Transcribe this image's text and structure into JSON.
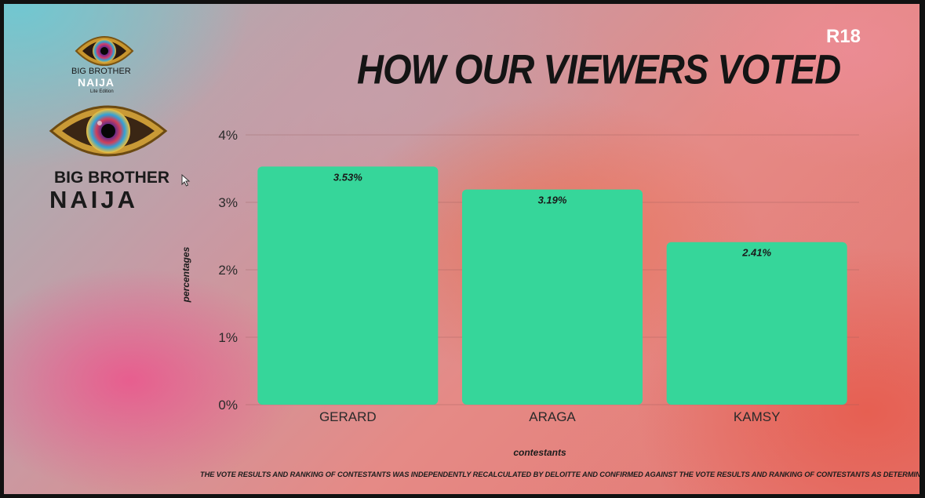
{
  "header": {
    "title": "HOW OUR VIEWERS VOTED",
    "rating_badge": "R18"
  },
  "logos": {
    "small": {
      "line1": "BIG BROTHER",
      "line2": "NAIJA",
      "line3": "Lite Edition"
    },
    "big": {
      "line1": "BIG BROTHER",
      "line2": "NAIJA"
    },
    "icon": "eye-logo-icon"
  },
  "footnote": "THE VOTE RESULTS AND RANKING OF CONTESTANTS WAS INDEPENDENTLY RECALCULATED BY DELOITTE AND CONFIRMED AGAINST THE VOTE RESULTS AND RANKING OF CONTESTANTS AS DETERMINED BY MULTICHOICE.",
  "chart_data": {
    "type": "bar",
    "title": "HOW OUR VIEWERS VOTED",
    "categories": [
      "GERARD",
      "ARAGA",
      "KAMSY"
    ],
    "values": [
      3.53,
      3.19,
      2.41
    ],
    "data_labels": [
      "3.53%",
      "3.19%",
      "2.41%"
    ],
    "xlabel": "contestants",
    "ylabel": "percentages",
    "ylim": [
      0,
      4
    ],
    "yticks": [
      0,
      1,
      2,
      3,
      4
    ],
    "ytick_labels": [
      "0%",
      "1%",
      "2%",
      "3%",
      "4%"
    ],
    "grid": true,
    "bar_color": "#36d69a",
    "legend": "none"
  },
  "colors": {
    "bar": "#36d69a",
    "title_text": "#141414",
    "badge_text": "#ffffff"
  }
}
